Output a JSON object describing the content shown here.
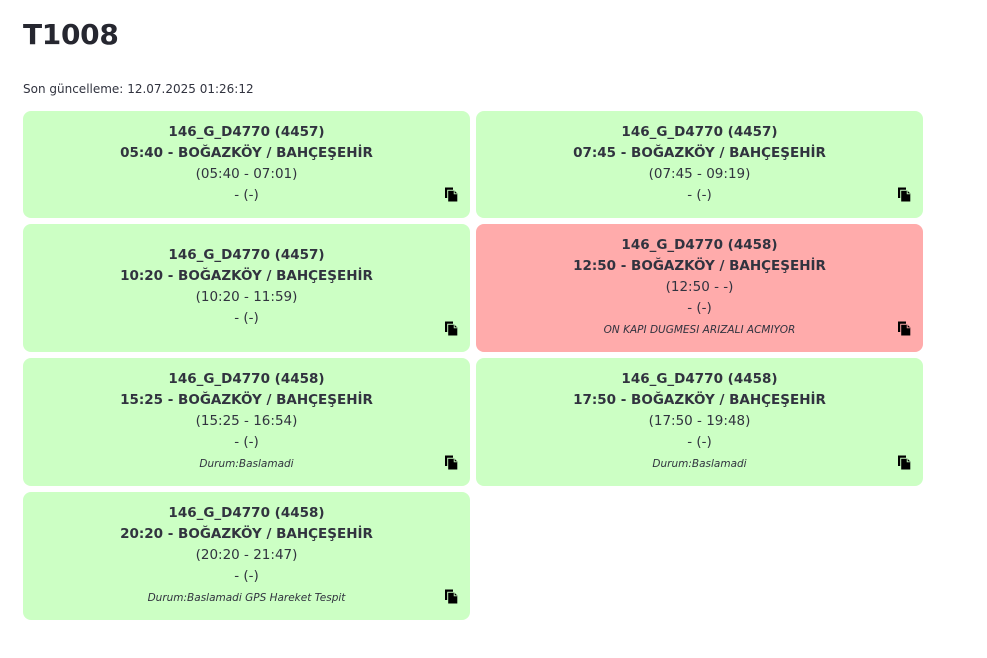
{
  "page": {
    "title": "T1008",
    "last_update_label": "Son güncelleme:",
    "last_update_value": "12.07.2025 01:26:12"
  },
  "colors": {
    "ok_card": "#ccffc4",
    "alert_card": "#ffabab"
  },
  "trips": [
    {
      "vehicle": "146_G_D4770 (4457)",
      "route": "05:40 - BOĞAZKÖY / BAHÇEŞEHİR",
      "times": "(05:40 - 07:01)",
      "actual": "- (-)",
      "note": "",
      "status": "ok",
      "icon": "copy-icon"
    },
    {
      "vehicle": "146_G_D4770 (4457)",
      "route": "07:45 - BOĞAZKÖY / BAHÇEŞEHİR",
      "times": "(07:45 - 09:19)",
      "actual": "- (-)",
      "note": "",
      "status": "ok",
      "icon": "copy-icon"
    },
    {
      "vehicle": "146_G_D4770 (4457)",
      "route": "10:20 - BOĞAZKÖY / BAHÇEŞEHİR",
      "times": "(10:20 - 11:59)",
      "actual": "- (-)",
      "note": "",
      "status": "ok",
      "icon": "copy-icon"
    },
    {
      "vehicle": "146_G_D4770 (4458)",
      "route": "12:50 - BOĞAZKÖY / BAHÇEŞEHİR",
      "times": "(12:50 - -)",
      "actual": "- (-)",
      "note": "ON KAPI DUGMESI ARIZALI ACMIYOR",
      "status": "alert",
      "icon": "copy-icon"
    },
    {
      "vehicle": "146_G_D4770 (4458)",
      "route": "15:25 - BOĞAZKÖY / BAHÇEŞEHİR",
      "times": "(15:25 - 16:54)",
      "actual": "- (-)",
      "note": "Durum:Baslamadi",
      "status": "ok",
      "icon": "copy-icon"
    },
    {
      "vehicle": "146_G_D4770 (4458)",
      "route": "17:50 - BOĞAZKÖY / BAHÇEŞEHİR",
      "times": "(17:50 - 19:48)",
      "actual": "- (-)",
      "note": "Durum:Baslamadi",
      "status": "ok",
      "icon": "copy-icon"
    },
    {
      "vehicle": "146_G_D4770 (4458)",
      "route": "20:20 - BOĞAZKÖY / BAHÇEŞEHİR",
      "times": "(20:20 - 21:47)",
      "actual": "- (-)",
      "note": "Durum:Baslamadi GPS Hareket Tespit",
      "status": "ok",
      "icon": "copy-icon"
    }
  ]
}
